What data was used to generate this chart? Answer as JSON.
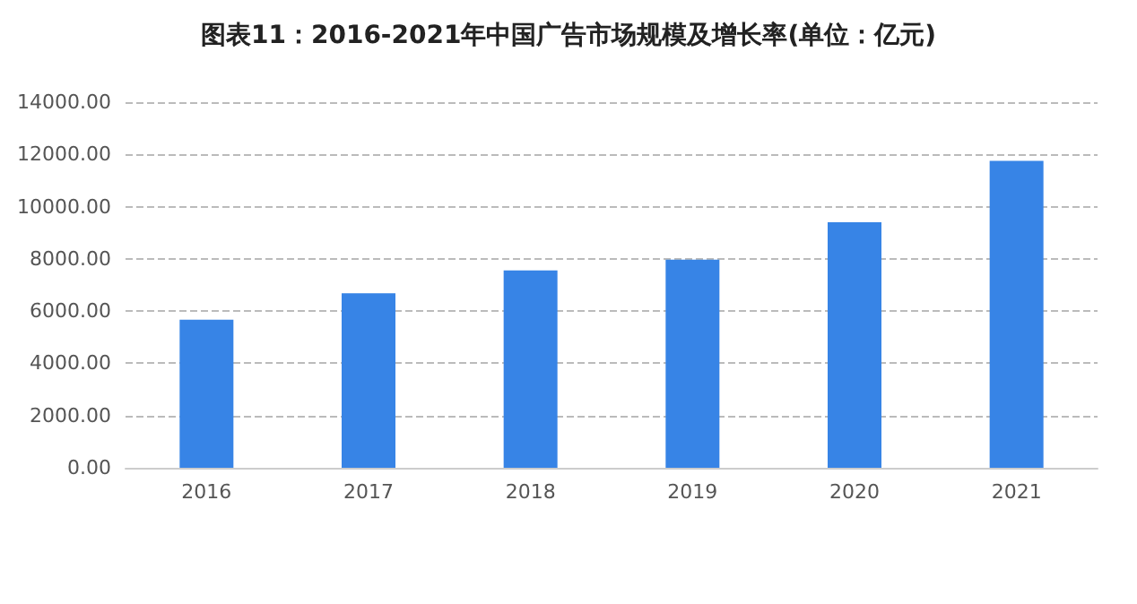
{
  "chart_data": {
    "type": "bar",
    "title": "图表11：2016-2021年中国广告市场规模及增长率(单位：亿元)",
    "categories": [
      "2016",
      "2017",
      "2018",
      "2019",
      "2020",
      "2021"
    ],
    "values": [
      5670,
      6680,
      7560,
      7970,
      9400,
      11750
    ],
    "color": "#3784e6",
    "ylim": [
      0,
      14000
    ],
    "yticks": [
      {
        "value": 0,
        "label": "0.00"
      },
      {
        "value": 2000,
        "label": "2000.00"
      },
      {
        "value": 4000,
        "label": "4000.00"
      },
      {
        "value": 6000,
        "label": "6000.00"
      },
      {
        "value": 8000,
        "label": "8000.00"
      },
      {
        "value": 10000,
        "label": "10000.00"
      },
      {
        "value": 12000,
        "label": "12000.00"
      },
      {
        "value": 14000,
        "label": "14000.00"
      }
    ],
    "grid": "y"
  }
}
